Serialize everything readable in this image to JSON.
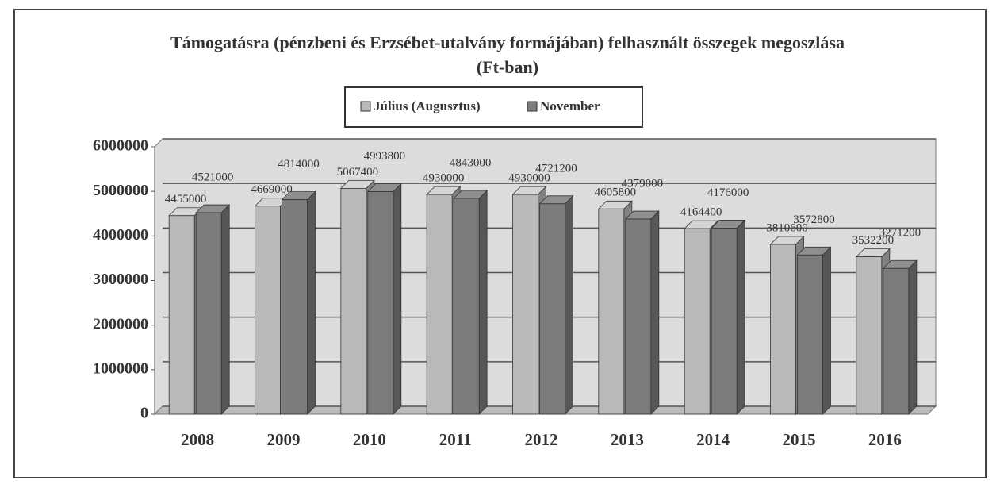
{
  "chart_data": {
    "type": "bar3d",
    "title": "Támogatásra (pénzbeni és Erzsébet-utalvány formájában) felhasznált összegek megoszlása (Ft-ban)",
    "categories": [
      "2008",
      "2009",
      "2010",
      "2011",
      "2012",
      "2013",
      "2014",
      "2015",
      "2016"
    ],
    "series": [
      {
        "name": "Július (Augusztus)",
        "color": "#b9b9b9",
        "values": [
          4455000,
          4669000,
          5067400,
          4930000,
          4930000,
          4605800,
          4164400,
          3810600,
          3532200
        ]
      },
      {
        "name": "November",
        "color": "#7c7c7c",
        "values": [
          4521000,
          4814000,
          4993800,
          4843000,
          4721200,
          4379000,
          4176000,
          3572800,
          3271200
        ]
      }
    ],
    "ylim": [
      0,
      6000000
    ],
    "yticks": [
      0,
      1000000,
      2000000,
      3000000,
      4000000,
      5000000,
      6000000
    ],
    "grid": true,
    "legend": "top"
  }
}
